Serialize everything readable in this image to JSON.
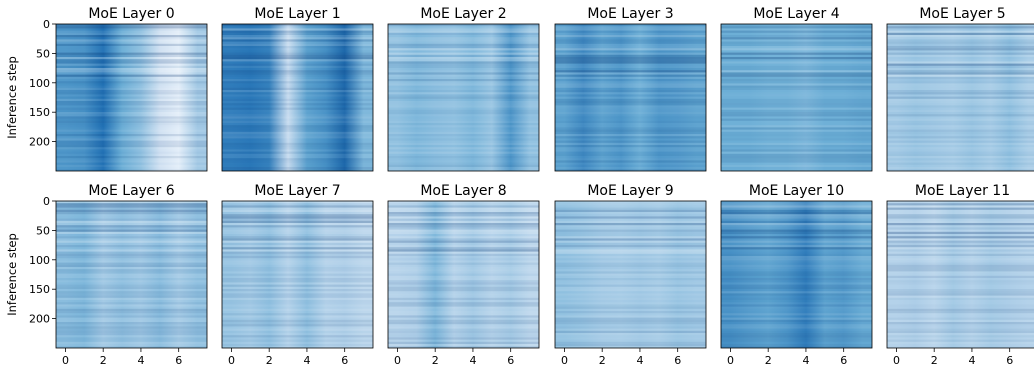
{
  "chart_data": {
    "type": "heatmap",
    "ylabel": "Inference step",
    "colormap": "Blues",
    "x_range": [
      -0.5,
      7.5
    ],
    "y_range": [
      0,
      250
    ],
    "y_inverted": true,
    "x_ticks": [
      "0",
      "2",
      "4",
      "6"
    ],
    "y_ticks": [
      "0",
      "50",
      "100",
      "150",
      "200"
    ],
    "panels": [
      {
        "title": "MoE Layer 0"
      },
      {
        "title": "MoE Layer 1"
      },
      {
        "title": "MoE Layer 2"
      },
      {
        "title": "MoE Layer 3"
      },
      {
        "title": "MoE Layer 4"
      },
      {
        "title": "MoE Layer 5"
      },
      {
        "title": "MoE Layer 6"
      },
      {
        "title": "MoE Layer 7"
      },
      {
        "title": "MoE Layer 8"
      },
      {
        "title": "MoE Layer 9"
      },
      {
        "title": "MoE Layer 10"
      },
      {
        "title": "MoE Layer 11"
      }
    ],
    "expert_intensity_profiles": [
      [
        0.6,
        0.62,
        0.75,
        0.5,
        0.4,
        0.2,
        0.1,
        0.35
      ],
      [
        0.7,
        0.72,
        0.68,
        0.25,
        0.55,
        0.62,
        0.78,
        0.45
      ],
      [
        0.4,
        0.45,
        0.42,
        0.4,
        0.45,
        0.38,
        0.6,
        0.4
      ],
      [
        0.55,
        0.65,
        0.55,
        0.6,
        0.5,
        0.6,
        0.58,
        0.55
      ],
      [
        0.5,
        0.5,
        0.48,
        0.48,
        0.45,
        0.5,
        0.5,
        0.52
      ],
      [
        0.35,
        0.38,
        0.36,
        0.34,
        0.38,
        0.34,
        0.4,
        0.33
      ],
      [
        0.42,
        0.45,
        0.35,
        0.4,
        0.36,
        0.42,
        0.34,
        0.4
      ],
      [
        0.38,
        0.35,
        0.4,
        0.3,
        0.4,
        0.3,
        0.32,
        0.28
      ],
      [
        0.3,
        0.32,
        0.45,
        0.3,
        0.36,
        0.3,
        0.34,
        0.28
      ],
      [
        0.4,
        0.38,
        0.35,
        0.34,
        0.36,
        0.34,
        0.38,
        0.36
      ],
      [
        0.62,
        0.58,
        0.55,
        0.6,
        0.7,
        0.55,
        0.58,
        0.52
      ],
      [
        0.3,
        0.32,
        0.28,
        0.34,
        0.3,
        0.34,
        0.32,
        0.3
      ]
    ]
  }
}
